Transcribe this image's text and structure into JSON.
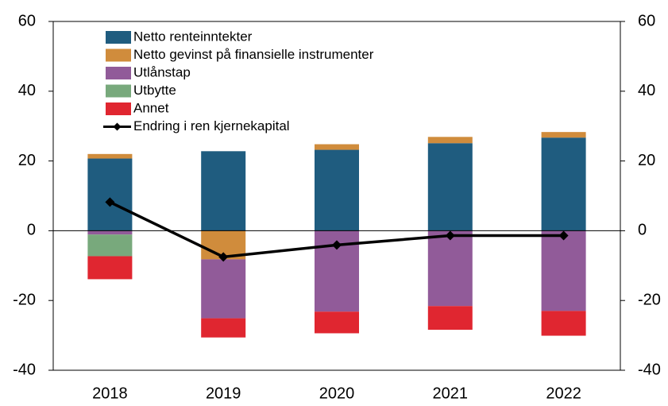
{
  "chart_data": {
    "type": "bar",
    "categories": [
      "2018",
      "2019",
      "2020",
      "2021",
      "2022"
    ],
    "series": [
      {
        "name": "Netto renteinntekter",
        "color": "#1f5c7f",
        "values": [
          20.7,
          22.8,
          23.2,
          25.1,
          26.7
        ]
      },
      {
        "name": "Netto gevinst på finansielle instrumenter",
        "color": "#d08c3c",
        "values": [
          1.3,
          -8.2,
          1.6,
          1.8,
          1.6
        ]
      },
      {
        "name": "Utlånstap",
        "color": "#915b99",
        "values": [
          -1.1,
          -16.9,
          -23.2,
          -21.6,
          -23.0
        ]
      },
      {
        "name": "Utbytte",
        "color": "#78a97c",
        "values": [
          -6.2,
          0,
          0,
          0,
          0
        ]
      },
      {
        "name": "Annet",
        "color": "#e02630",
        "values": [
          -6.6,
          -5.5,
          -6.2,
          -6.8,
          -7.1
        ]
      },
      {
        "name": "Endring i ren kjernekapital",
        "type": "line",
        "color": "#000000",
        "values": [
          8.2,
          -7.5,
          -4.1,
          -1.4,
          -1.4
        ]
      }
    ],
    "ylim": [
      -40,
      60
    ],
    "yticks": [
      -40,
      -20,
      0,
      20,
      40,
      60
    ],
    "y2lim": [
      -40,
      60
    ],
    "y2ticks": [
      -40,
      -20,
      0,
      20,
      40,
      60
    ],
    "legend": "upper-left"
  }
}
